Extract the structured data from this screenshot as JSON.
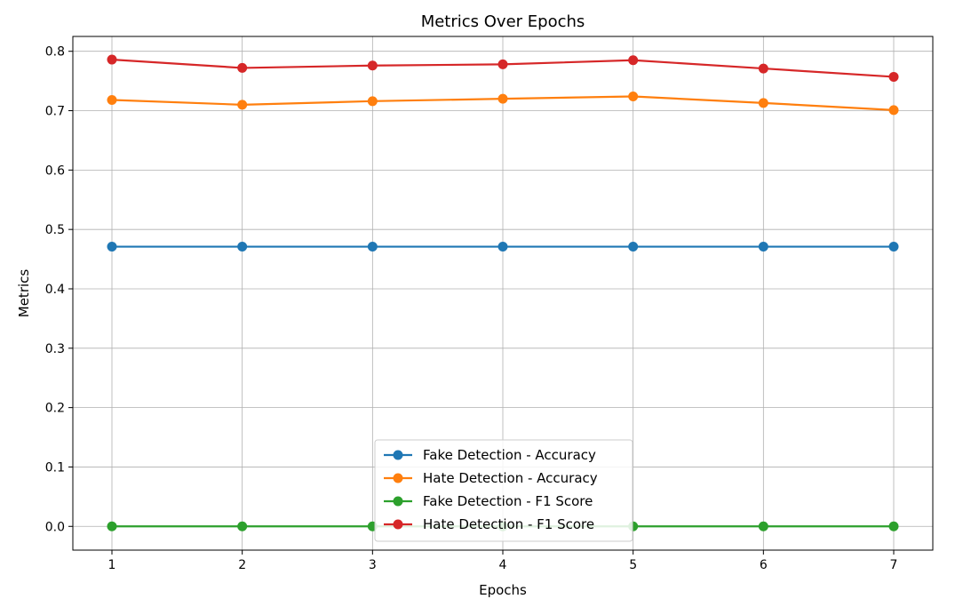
{
  "chart_data": {
    "type": "line",
    "title": "Metrics Over Epochs",
    "xlabel": "Epochs",
    "ylabel": "Metrics",
    "x": [
      1,
      2,
      3,
      4,
      5,
      6,
      7
    ],
    "xlim": [
      0.7,
      7.3
    ],
    "ylim": [
      -0.04,
      0.825
    ],
    "xticks": [
      1,
      2,
      3,
      4,
      5,
      6,
      7
    ],
    "xtick_labels": [
      "1",
      "2",
      "3",
      "4",
      "5",
      "6",
      "7"
    ],
    "yticks": [
      0.0,
      0.1,
      0.2,
      0.3,
      0.4,
      0.5,
      0.6,
      0.7,
      0.8
    ],
    "ytick_labels": [
      "0.0",
      "0.1",
      "0.2",
      "0.3",
      "0.4",
      "0.5",
      "0.6",
      "0.7",
      "0.8"
    ],
    "grid": true,
    "legend_position": "lower-center",
    "series": [
      {
        "name": "Fake Detection - Accuracy",
        "color": "#1f77b4",
        "marker": "circle",
        "values": [
          0.471,
          0.471,
          0.471,
          0.471,
          0.471,
          0.471,
          0.471
        ]
      },
      {
        "name": "Hate Detection - Accuracy",
        "color": "#ff7f0e",
        "marker": "circle",
        "values": [
          0.718,
          0.71,
          0.716,
          0.72,
          0.724,
          0.713,
          0.701
        ]
      },
      {
        "name": "Fake Detection - F1 Score",
        "color": "#2ca02c",
        "marker": "circle",
        "values": [
          0.0,
          0.0,
          0.0,
          0.0,
          0.0,
          0.0,
          0.0
        ]
      },
      {
        "name": "Hate Detection - F1 Score",
        "color": "#d62728",
        "marker": "circle",
        "values": [
          0.786,
          0.772,
          0.776,
          0.778,
          0.785,
          0.771,
          0.757
        ]
      }
    ]
  }
}
